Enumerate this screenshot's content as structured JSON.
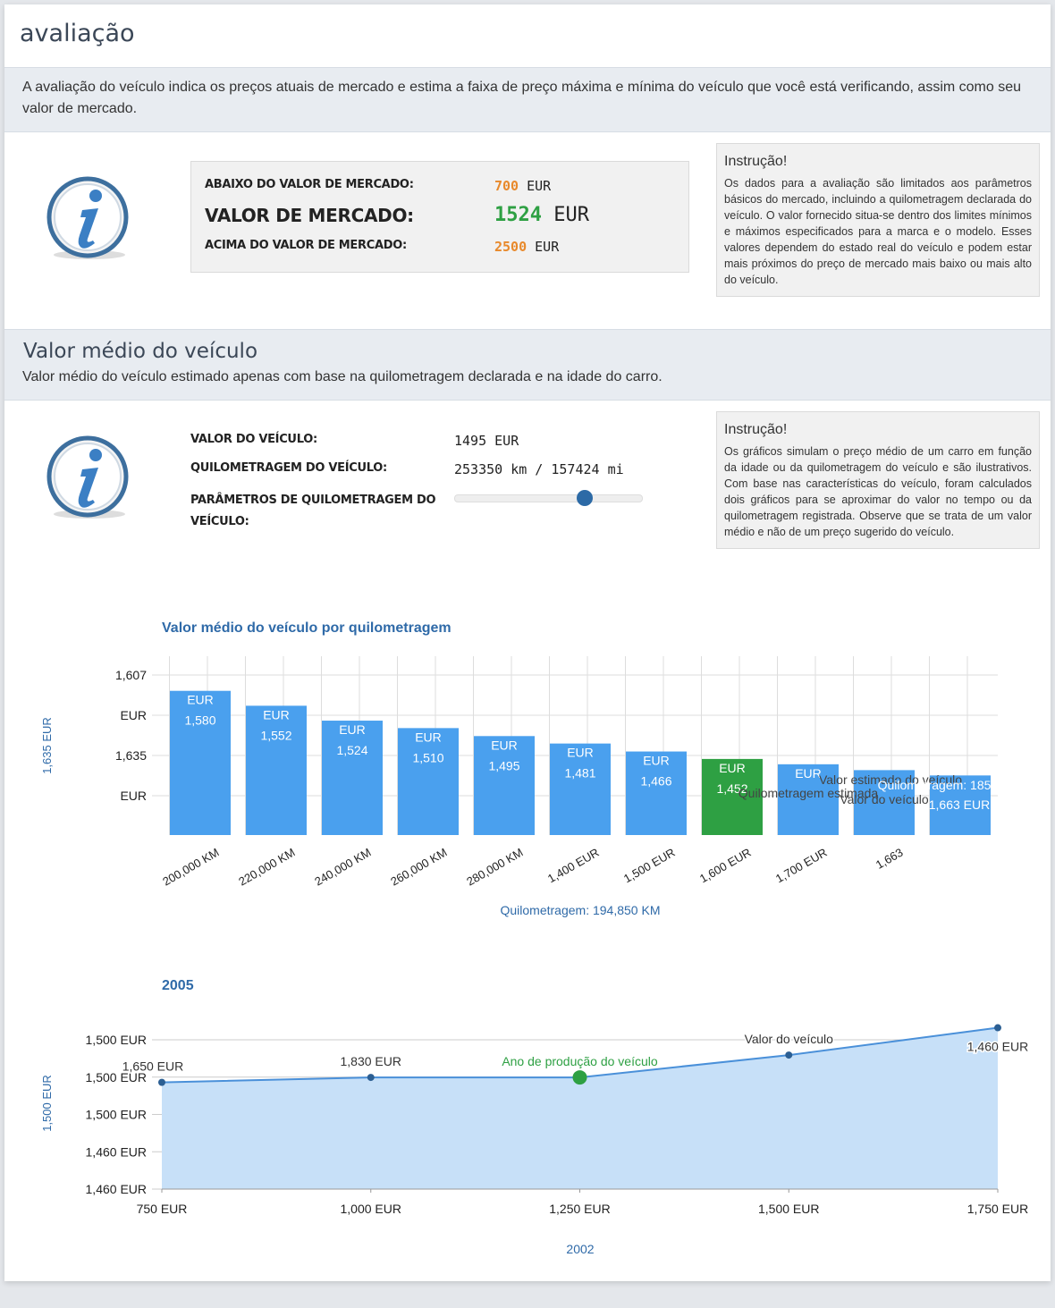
{
  "header": {
    "title": "avaliação"
  },
  "intro": "A avaliação do veículo indica os preços atuais de mercado e estima a faixa de preço máxima e mínima do veículo que você está verificando, assim como seu valor de mercado.",
  "market": {
    "rows": [
      {
        "label": "ABAIXO DO VALOR DE MERCADO:",
        "value": 700,
        "unit": "EUR"
      },
      {
        "label": "VALOR DE MERCADO:",
        "value": 1524,
        "unit": "EUR"
      },
      {
        "label": "ACIMA DO VALOR DE MERCADO:",
        "value": 2500,
        "unit": "EUR"
      }
    ]
  },
  "instruction_1": {
    "title": "Instrução!",
    "text": "Os dados para a avaliação são limitados aos parâmetros básicos do mercado, incluindo a quilometragem declarada do veículo. O valor fornecido situa-se dentro dos limites mínimos e máximos especificados para a marca e o modelo. Esses valores dependem do estado real do veículo e podem estar mais próximos do preço de mercado mais baixo ou mais alto do veículo."
  },
  "section_2": {
    "title": "Valor médio do veículo",
    "subtitle": "Valor médio do veículo estimado apenas com base na quilometragem declarada e na idade do carro."
  },
  "vehicle": {
    "rows": [
      {
        "label": "VALOR DO VEÍCULO:",
        "value": "1495 EUR"
      },
      {
        "label": "QUILOMETRAGEM DO VEÍCULO:",
        "value": "253350 km / 157424 mi"
      },
      {
        "label": "PARÂMETROS DE QUILOMETRAGEM DO VEÍCULO:"
      }
    ]
  },
  "instruction_2": {
    "title": "Instrução!",
    "text": "Os gráficos simulam o preço médio de um carro em função da idade ou da quilometragem do veículo e são ilustrativos. Com base nas características do veículo, foram calculados dois gráficos para se aproximar do valor no tempo ou da quilometragem registrada. Observe que se trata de um valor médio e não de um preço sugerido do veículo."
  },
  "chart_data": [
    {
      "type": "bar",
      "title": "Valor médio do veículo por quilometragem",
      "x_label": "Quilometragem: 194,850 KM",
      "y_label": "1,635 EUR",
      "categories": [
        "200,000 KM",
        "220,000 KM",
        "240,000 KM",
        "260,000 KM",
        "280,000 KM",
        "1,400 EUR",
        "1,500 EUR",
        "1,600 EUR",
        "1,700 EUR",
        "1,663",
        null
      ],
      "values": [
        1580,
        1552,
        1524,
        1510,
        1495,
        1481,
        1466,
        1452,
        1442,
        1431,
        1421
      ],
      "value_labels": [
        "1,580",
        "1,552",
        "1,524",
        "1,510",
        "1,495",
        "1,481",
        "1,466",
        "1,452",
        null,
        null,
        null
      ],
      "value_unit": "EUR",
      "ylim": [
        1309,
        1640
      ],
      "ytick_labels": [
        "1,607",
        "EUR",
        "1,635",
        "EUR"
      ],
      "grid": true,
      "color": "#4aa0ee",
      "highlight_color": "#2ea043",
      "highlight_index": 7,
      "annotations": [
        "Valor estimado do veículo",
        "Quilometragem estimada",
        "Quilometragem: 185",
        "Valor do veículo",
        "1,663 EUR"
      ]
    },
    {
      "type": "line",
      "title": "2005",
      "x_label": "2002",
      "y_label": "1,500 EUR",
      "x": [
        750,
        1000,
        1250,
        1500,
        1750
      ],
      "values": [
        1503,
        1505,
        1505,
        1514,
        1525
      ],
      "xlim": [
        750,
        1750
      ],
      "xticks": [
        {
          "value": 750,
          "label": "750 EUR"
        },
        {
          "value": 1000,
          "label": "1,000 EUR"
        },
        {
          "value": 1250,
          "label": "1,250 EUR"
        },
        {
          "value": 1500,
          "label": "1,500 EUR"
        },
        {
          "value": 1750,
          "label": "1,750 EUR"
        }
      ],
      "ylim": [
        1460,
        1527
      ],
      "ytick_labels": [
        "1,500 EUR",
        "1,500 EUR",
        "1,500 EUR",
        "1,460 EUR",
        "1,460 EUR"
      ],
      "grid": true,
      "color": "#4a90d9",
      "fill_color": "#c7e0f8",
      "highlight_color": "#2ea043",
      "highlight_index": 2,
      "annotations": [
        "1,650 EUR",
        "1,830 EUR",
        "Ano de produção do veículo",
        "Valor do veículo",
        "1,460 EUR"
      ]
    }
  ]
}
